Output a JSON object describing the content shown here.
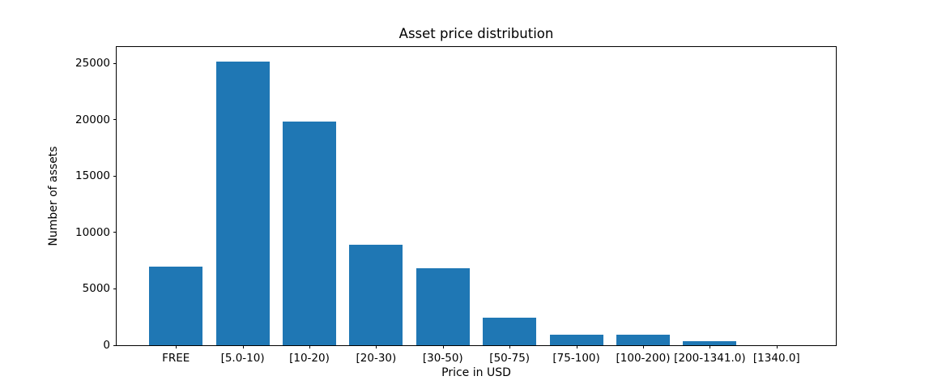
{
  "chart_data": {
    "type": "bar",
    "title": "Asset price distribution",
    "xlabel": "Price in USD",
    "ylabel": "Number of assets",
    "categories": [
      "FREE",
      "[5.0-10)",
      "[10-20)",
      "[20-30)",
      "[30-50)",
      "[50-75)",
      "[75-100)",
      "[100-200)",
      "[200-1341.0)",
      "[1340.0]"
    ],
    "values": [
      7000,
      25200,
      19850,
      8900,
      6850,
      2450,
      900,
      900,
      330,
      0
    ],
    "yticks": [
      0,
      5000,
      10000,
      15000,
      20000,
      25000
    ],
    "ylim": [
      0,
      26460
    ],
    "bar_color": "#1f77b4",
    "axis_color": "#000000",
    "background_color": "#ffffff",
    "grid": false,
    "legend": "none",
    "bar_width_fraction": 0.8
  }
}
